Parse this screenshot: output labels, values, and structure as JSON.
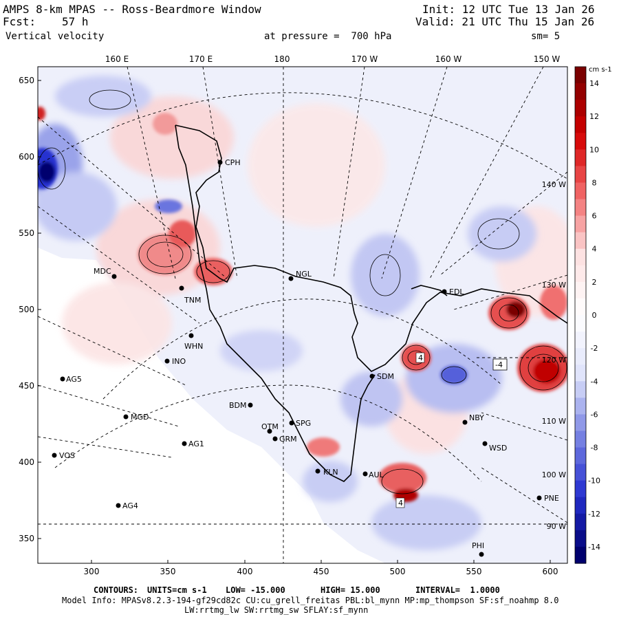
{
  "header": {
    "title": "AMPS 8-km MPAS -- Ross-Beardmore Window",
    "fcst_label": "Fcst:",
    "fcst_value": "57 h",
    "field": "Vertical velocity",
    "init": "Init: 12 UTC Tue 13 Jan 26",
    "valid": "Valid: 21 UTC Thu 15 Jan 26",
    "pressure": "at pressure =  700 hPa",
    "smoothing": "sm= 5"
  },
  "axes": {
    "top_lon_labels": [
      "160 E",
      "170 E",
      "180",
      "170 W",
      "160 W",
      "150 W"
    ],
    "left_ticks": [
      "650",
      "600",
      "550",
      "500",
      "450",
      "400",
      "350"
    ],
    "bottom_ticks": [
      "300",
      "350",
      "400",
      "450",
      "500",
      "550",
      "600"
    ],
    "right_lon_labels": [
      "140 W",
      "130 W",
      "120 W",
      "110 W",
      "100 W",
      "90 W"
    ]
  },
  "colorbar": {
    "units": "cm s-1",
    "labels": [
      "14",
      "12",
      "10",
      "8",
      "6",
      "4",
      "2",
      "0",
      "-2",
      "-4",
      "-6",
      "-8",
      "-10",
      "-12",
      "-14"
    ],
    "colors": {
      "max": "#7a0000",
      "strong_pos": "#d40000",
      "mid_pos": "#f26a6a",
      "weak_pos": "#fde1e1",
      "zero": "#ffffff",
      "weak_neg": "#dfe3fb",
      "mid_neg": "#7b86e3",
      "strong_neg": "#2530d0",
      "min": "#00006e"
    }
  },
  "stations": [
    {
      "name": "CPH"
    },
    {
      "name": "NGL"
    },
    {
      "name": "MDC"
    },
    {
      "name": "TNM"
    },
    {
      "name": "WHN"
    },
    {
      "name": "INO"
    },
    {
      "name": "AG5"
    },
    {
      "name": "MGD"
    },
    {
      "name": "BDM"
    },
    {
      "name": "SPG"
    },
    {
      "name": "OTM"
    },
    {
      "name": "GRM"
    },
    {
      "name": "AG1"
    },
    {
      "name": "VOS"
    },
    {
      "name": "AG4"
    },
    {
      "name": "KLN"
    },
    {
      "name": "AUL"
    },
    {
      "name": "SDM"
    },
    {
      "name": "NBY"
    },
    {
      "name": "WSD"
    },
    {
      "name": "PNE"
    },
    {
      "name": "PHI"
    },
    {
      "name": "EDL"
    }
  ],
  "contour_labels": [
    "4",
    "-4",
    "4"
  ],
  "footer": {
    "contours_label": "CONTOURS:",
    "units": "UNITS=cm s-1",
    "low": "LOW= -15.000",
    "high": "HIGH= 15.000",
    "interval": "INTERVAL=  1.0000",
    "model_info": "Model Info: MPASv8.2.3-194-gf29cd82c CU:cu_grell_freitas PBL:bl_mynn MP:mp_thompson SF:sf_noahmp 8.0",
    "model_info2": "LW:rrtmg_lw SW:rrtmg_sw SFLAY:sf_mynn"
  }
}
